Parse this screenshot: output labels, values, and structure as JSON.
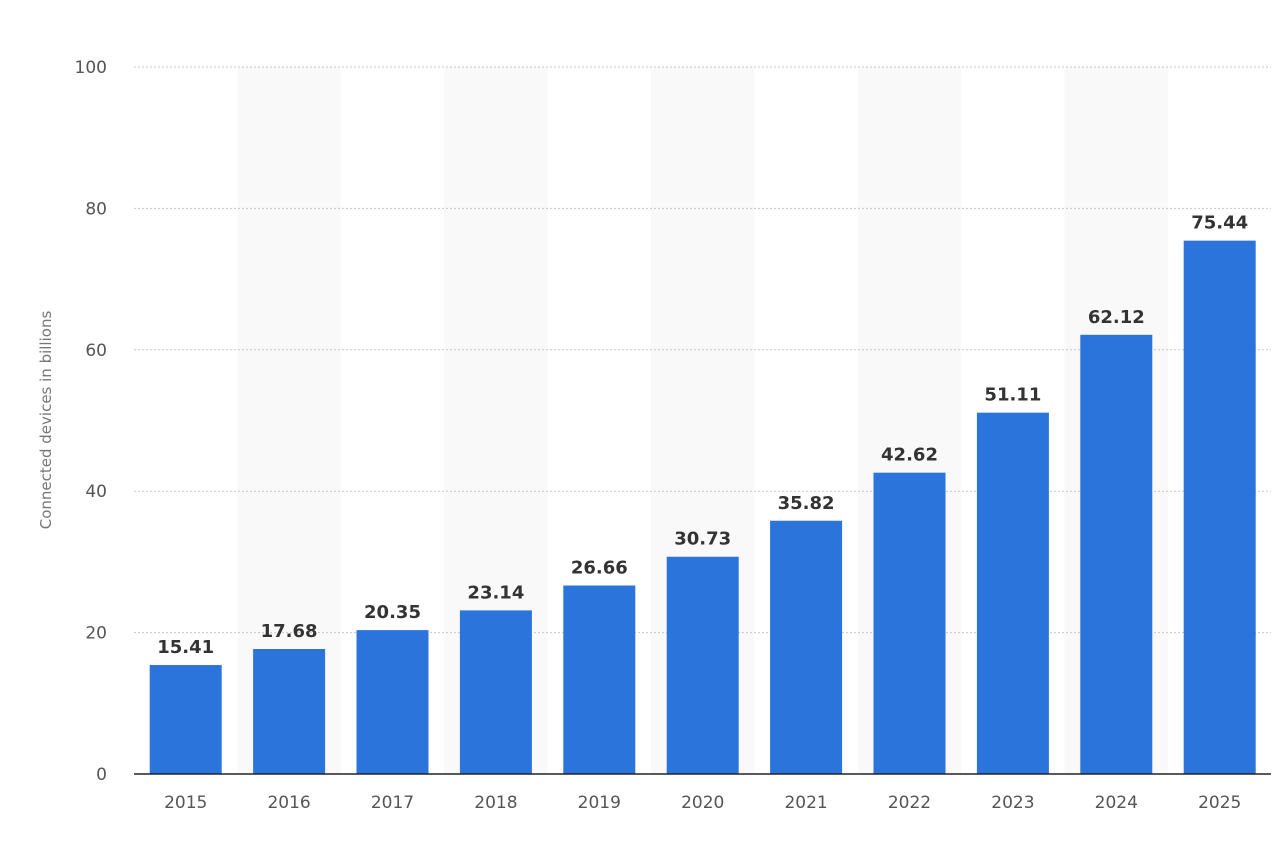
{
  "chart_data": {
    "type": "bar",
    "title": "",
    "xlabel": "",
    "ylabel": "Connected devices in billions",
    "categories": [
      "2015",
      "2016",
      "2017",
      "2018",
      "2019",
      "2020",
      "2021",
      "2022",
      "2023",
      "2024",
      "2025"
    ],
    "values": [
      15.41,
      17.68,
      20.35,
      23.14,
      26.66,
      30.73,
      35.82,
      42.62,
      51.11,
      62.12,
      75.44
    ],
    "value_labels": [
      "15.41",
      "17.68",
      "20.35",
      "23.14",
      "26.66",
      "30.73",
      "35.82",
      "42.62",
      "51.11",
      "62.12",
      "75.44"
    ],
    "ylim": [
      0,
      100
    ],
    "y_ticks": [
      0,
      20,
      40,
      60,
      80,
      100
    ],
    "grid": true,
    "alternating_column_shading": true,
    "legend": "none",
    "colors": {
      "bar": "#2a74dc",
      "band": "#f9f9f9",
      "grid": "#c8c8c8",
      "axis": "#222222"
    }
  }
}
